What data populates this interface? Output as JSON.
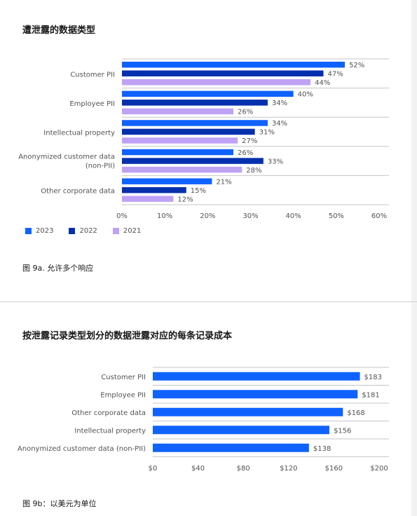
{
  "chart_a": {
    "title": "遭泄露的数据类型",
    "caption": "图 9a. 允许多个响应"
  },
  "chart_b": {
    "title": "按泄露记录类型划分的数据泄露对应的每条记录成本",
    "caption": "图 9b：以美元为单位"
  },
  "legend": {
    "2023": "2023",
    "2022": "2022",
    "2021": "2021"
  },
  "colors": {
    "2023": "#0f62fe",
    "2022": "#0530ad",
    "2021": "#bfa2f5",
    "cost": "#0f62fe"
  },
  "chart_data": [
    {
      "type": "bar",
      "orientation": "horizontal",
      "title": "遭泄露的数据类型",
      "categories": [
        "Customer PII",
        "Employee PII",
        "Intellectual property",
        "Anonymized customer data (non-PII)",
        "Other corporate data"
      ],
      "series": [
        {
          "name": "2023",
          "values": [
            52,
            40,
            34,
            26,
            21
          ],
          "labels": [
            "52%",
            "40%",
            "34%",
            "26%",
            "21%"
          ]
        },
        {
          "name": "2022",
          "values": [
            47,
            34,
            31,
            33,
            15
          ],
          "labels": [
            "47%",
            "34%",
            "31%",
            "33%",
            "15%"
          ]
        },
        {
          "name": "2021",
          "values": [
            44,
            26,
            27,
            28,
            12
          ],
          "labels": [
            "44%",
            "26%",
            "27%",
            "28%",
            "12%"
          ]
        }
      ],
      "xlim": [
        0,
        60
      ],
      "xticks": [
        "0%",
        "10%",
        "20%",
        "30%",
        "40%",
        "50%",
        "60%"
      ],
      "grid": true,
      "legend_position": "bottom-left"
    },
    {
      "type": "bar",
      "orientation": "horizontal",
      "title": "按泄露记录类型划分的数据泄露对应的每条记录成本",
      "categories": [
        "Customer PII",
        "Employee PII",
        "Other corporate data",
        "Intellectual property",
        "Anonymized customer data (non-PII)"
      ],
      "values": [
        183,
        181,
        168,
        156,
        138
      ],
      "labels": [
        "$183",
        "$181",
        "$168",
        "$156",
        "$138"
      ],
      "xlim": [
        0,
        200
      ],
      "xticks": [
        "$0",
        "$40",
        "$80",
        "$120",
        "$160",
        "$200"
      ],
      "grid": true
    }
  ]
}
